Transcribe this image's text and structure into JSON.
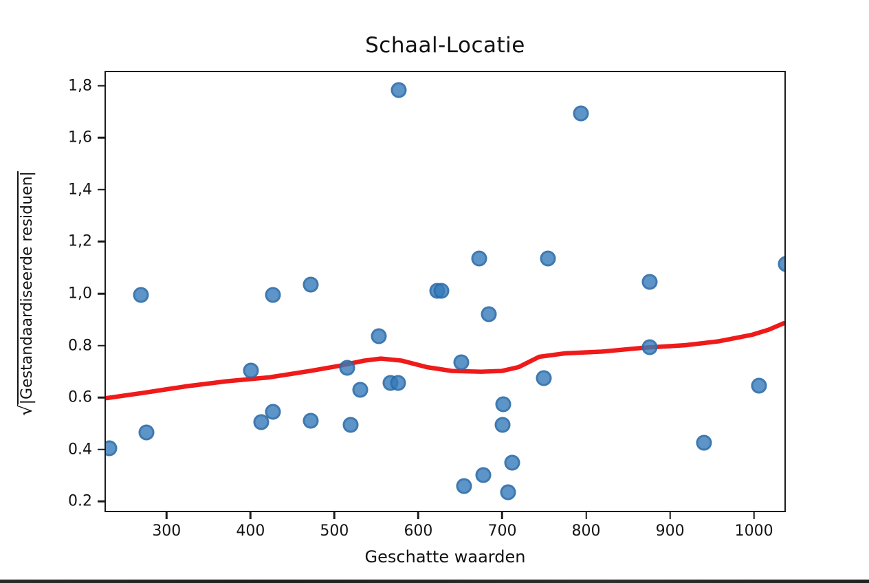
{
  "figure": {
    "title": "Schaal-Locatie",
    "xlabel": "Geschatte waarden",
    "ylabel": "√|Gestandaardiseerde residuen|",
    "ylabel_radical": "√",
    "ylabel_under_root": "|Gestandaardiseerde residuen|"
  },
  "colors": {
    "scatter_fill": "rgba(52,122,186,0.80)",
    "scatter_edge": "rgba(38,98,156,0.55)",
    "smoother_line": "#ee1111",
    "axis": "#1c1c1c",
    "text": "#111111",
    "background": "#ffffff"
  },
  "chart_data": {
    "type": "scatter",
    "title": "Schaal-Locatie",
    "xlabel": "Geschatte waarden",
    "ylabel": "√|Gestandaardiseerde residuen|",
    "grid": false,
    "legend": "none",
    "xlim": [
      226,
      1038
    ],
    "ylim": [
      0.158,
      1.858
    ],
    "x_ticks": [
      300,
      400,
      500,
      600,
      700,
      800,
      900,
      1000
    ],
    "x_tick_labels": [
      "300",
      "400",
      "500",
      "600",
      "700",
      "800",
      "900",
      "1000"
    ],
    "y_ticks": [
      1.8,
      1.6,
      1.4,
      1.2,
      1.0,
      0.8,
      0.6,
      0.4,
      0.2
    ],
    "y_tick_labels": [
      "1,8",
      "1,6",
      "1,4",
      "1,2",
      "1,0",
      "0.8",
      "0.6",
      "0.4",
      "0.2"
    ],
    "series": [
      {
        "name": "sqrt-standardized-residuals",
        "type": "scatter",
        "points": [
          [
            230,
            0.41
          ],
          [
            268,
            1.0
          ],
          [
            274,
            0.47
          ],
          [
            399,
            0.71
          ],
          [
            411,
            0.51
          ],
          [
            425,
            0.55
          ],
          [
            425,
            1.0
          ],
          [
            470,
            1.04
          ],
          [
            470,
            0.515
          ],
          [
            514,
            0.72
          ],
          [
            518,
            0.5
          ],
          [
            529,
            0.635
          ],
          [
            551,
            0.84
          ],
          [
            565,
            0.66
          ],
          [
            574,
            0.66
          ],
          [
            575,
            1.79
          ],
          [
            621,
            1.015
          ],
          [
            626,
            1.015
          ],
          [
            650,
            0.74
          ],
          [
            653,
            0.265
          ],
          [
            671,
            1.14
          ],
          [
            676,
            0.305
          ],
          [
            682,
            0.925
          ],
          [
            699,
            0.5
          ],
          [
            700,
            0.58
          ],
          [
            705,
            0.24
          ],
          [
            710,
            0.355
          ],
          [
            748,
            0.68
          ],
          [
            753,
            1.14
          ],
          [
            792,
            1.7
          ],
          [
            874,
            1.05
          ],
          [
            874,
            0.8
          ],
          [
            939,
            0.43
          ],
          [
            1004,
            0.65
          ],
          [
            1036,
            1.12
          ]
        ]
      },
      {
        "name": "lowess-smoother",
        "type": "line",
        "points": [
          [
            226,
            0.595
          ],
          [
            270,
            0.615
          ],
          [
            320,
            0.64
          ],
          [
            370,
            0.66
          ],
          [
            420,
            0.675
          ],
          [
            470,
            0.7
          ],
          [
            505,
            0.72
          ],
          [
            535,
            0.74
          ],
          [
            555,
            0.748
          ],
          [
            580,
            0.74
          ],
          [
            610,
            0.715
          ],
          [
            640,
            0.7
          ],
          [
            675,
            0.697
          ],
          [
            700,
            0.7
          ],
          [
            720,
            0.715
          ],
          [
            745,
            0.755
          ],
          [
            775,
            0.768
          ],
          [
            820,
            0.775
          ],
          [
            870,
            0.79
          ],
          [
            920,
            0.8
          ],
          [
            960,
            0.815
          ],
          [
            1000,
            0.84
          ],
          [
            1020,
            0.86
          ],
          [
            1038,
            0.885
          ]
        ]
      }
    ]
  }
}
